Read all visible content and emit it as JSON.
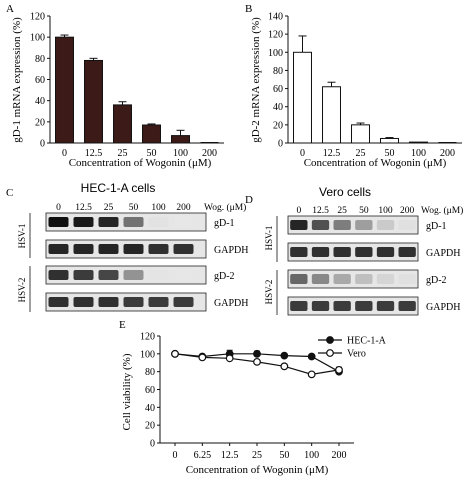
{
  "panels": {
    "A": {
      "letter": "A"
    },
    "B": {
      "letter": "B"
    },
    "C": {
      "letter": "C",
      "title": "HEC-1-A cells"
    },
    "D": {
      "letter": "D",
      "title": "Vero cells"
    },
    "E": {
      "letter": "E"
    }
  },
  "blots": {
    "C": {
      "lanes": [
        "0",
        "12.5",
        "25",
        "50",
        "100",
        "200"
      ],
      "wog_label": "Wog. (μM)",
      "groups": [
        "HSV-1",
        "HSV-2"
      ],
      "rows": [
        {
          "label": "gD-1",
          "intensity": [
            1,
            0.95,
            0.9,
            0.55,
            0.04,
            0.02
          ]
        },
        {
          "label": "GAPDH",
          "intensity": [
            0.9,
            0.9,
            0.9,
            0.9,
            0.85,
            0.85
          ]
        },
        {
          "label": "gD-2",
          "intensity": [
            0.85,
            0.8,
            0.75,
            0.4,
            0.03,
            0.02
          ]
        },
        {
          "label": "GAPDH",
          "intensity": [
            0.85,
            0.85,
            0.85,
            0.8,
            0.8,
            0.8
          ]
        }
      ]
    },
    "D": {
      "lanes": [
        "0",
        "12.5",
        "25",
        "50",
        "100",
        "200"
      ],
      "wog_label": "Wog. (μM)",
      "groups": [
        "HSV-1",
        "HSV-2"
      ],
      "rows": [
        {
          "label": "gD-1",
          "intensity": [
            0.9,
            0.7,
            0.5,
            0.35,
            0.15,
            0.05
          ]
        },
        {
          "label": "GAPDH",
          "intensity": [
            0.85,
            0.85,
            0.85,
            0.85,
            0.85,
            0.85
          ]
        },
        {
          "label": "gD-2",
          "intensity": [
            0.6,
            0.45,
            0.3,
            0.2,
            0.1,
            0.05
          ]
        },
        {
          "label": "GAPDH",
          "intensity": [
            0.8,
            0.8,
            0.8,
            0.8,
            0.8,
            0.8
          ]
        }
      ]
    }
  },
  "chart_data": [
    {
      "id": "A",
      "type": "bar",
      "categories": [
        "0",
        "12.5",
        "25",
        "50",
        "100",
        "200"
      ],
      "values": [
        100,
        78,
        36,
        17,
        7,
        0
      ],
      "errors": [
        2,
        2,
        3,
        1,
        5,
        0
      ],
      "xlabel": "Concentration of Wogonin (μM)",
      "ylabel": "gD-1 mRNA expression (%)",
      "ylim": [
        0,
        120
      ],
      "yticks": [
        0,
        20,
        40,
        60,
        80,
        100,
        120
      ],
      "bar_color": "#3b1a17"
    },
    {
      "id": "B",
      "type": "bar",
      "categories": [
        "0",
        "12.5",
        "25",
        "50",
        "100",
        "200"
      ],
      "values": [
        100,
        62,
        20,
        5,
        1,
        0
      ],
      "errors": [
        18,
        5,
        2,
        1,
        0,
        0
      ],
      "xlabel": "Concentration of Wogonin (μM)",
      "ylabel": "gD-2 mRNA expression (%)",
      "ylim": [
        0,
        140
      ],
      "yticks": [
        0,
        20,
        40,
        60,
        80,
        100,
        120,
        140
      ],
      "bar_color": "#ffffff"
    },
    {
      "id": "E",
      "type": "line",
      "x": [
        "0",
        "6.25",
        "12.5",
        "25",
        "50",
        "100",
        "200"
      ],
      "series": [
        {
          "name": "HEC-1-A",
          "values": [
            100,
            97,
            100,
            100,
            98,
            97,
            80
          ],
          "errors": [
            2,
            2,
            4,
            3,
            2,
            2,
            3
          ],
          "marker": "filled"
        },
        {
          "name": "Vero",
          "values": [
            100,
            96,
            95,
            91,
            86,
            77,
            82
          ],
          "errors": [
            2,
            2,
            2,
            2,
            2,
            2,
            3
          ],
          "marker": "open"
        }
      ],
      "xlabel": "Concentration of Wogonin (μM)",
      "ylabel": "Cell viability (%)",
      "ylim": [
        0,
        120
      ],
      "yticks": [
        0,
        20,
        40,
        60,
        80,
        100,
        120
      ],
      "legend": "top-right"
    }
  ]
}
